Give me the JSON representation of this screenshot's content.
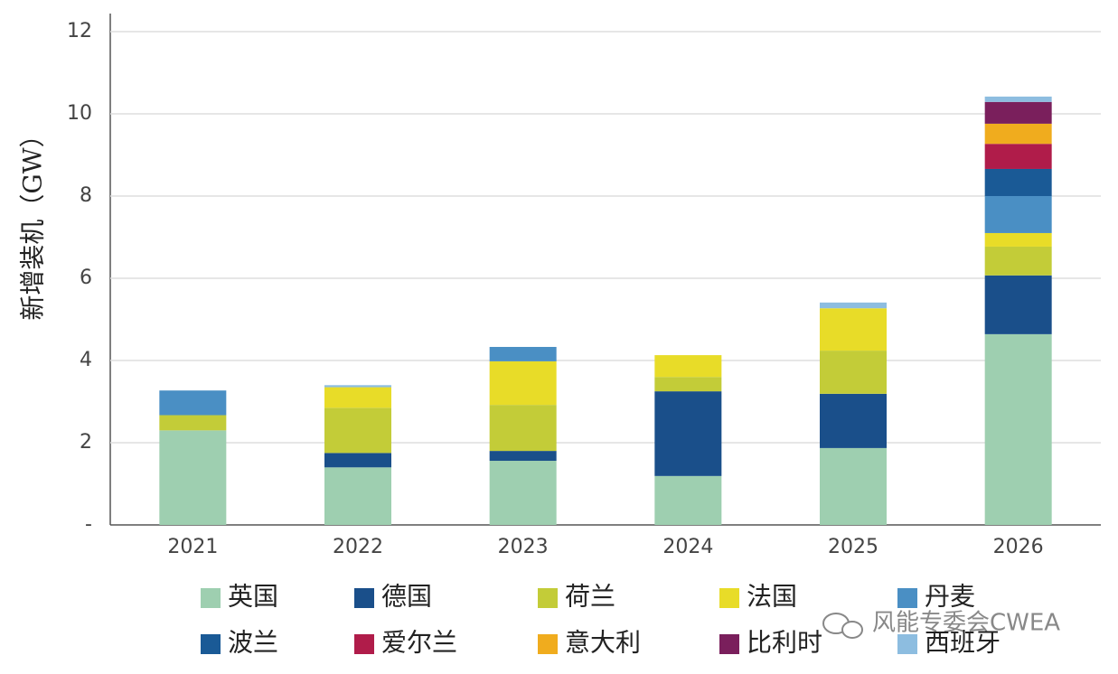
{
  "chart_data": {
    "type": "stacked_bar",
    "y_label": "新增装机（GW）",
    "watermark": "风能专委会CWEA",
    "categories": [
      "2021",
      "2022",
      "2023",
      "2024",
      "2025",
      "2026"
    ],
    "series": [
      {
        "name": "英国",
        "color": "#9ecfb0",
        "values": [
          2.3,
          1.4,
          1.56,
          1.19,
          1.87,
          4.64
        ]
      },
      {
        "name": "德国",
        "color": "#1a4f8a",
        "values": [
          0,
          0.35,
          0.24,
          2.06,
          1.32,
          1.43
        ]
      },
      {
        "name": "荷兰",
        "color": "#c3cc38",
        "values": [
          0.37,
          1.1,
          1.12,
          0.35,
          1.05,
          0.7
        ]
      },
      {
        "name": "法国",
        "color": "#e8dc28",
        "values": [
          0,
          0.5,
          1.06,
          0.53,
          1.03,
          0.33
        ]
      },
      {
        "name": "丹麦",
        "color": "#4a8fc4",
        "values": [
          0.6,
          0,
          0.35,
          0,
          0,
          0.9
        ]
      },
      {
        "name": "波兰",
        "color": "#1a5a96",
        "values": [
          0,
          0,
          0,
          0,
          0,
          0.66
        ]
      },
      {
        "name": "爱尔兰",
        "color": "#b01c4a",
        "values": [
          0,
          0,
          0,
          0,
          0,
          0.61
        ]
      },
      {
        "name": "意大利",
        "color": "#f0ac1e",
        "values": [
          0,
          0,
          0,
          0,
          0,
          0.49
        ]
      },
      {
        "name": "比利时",
        "color": "#7a1f5c",
        "values": [
          0,
          0,
          0,
          0,
          0,
          0.53
        ]
      },
      {
        "name": "西班牙",
        "color": "#8dbde0",
        "values": [
          0,
          0.05,
          0,
          0,
          0.14,
          0.13
        ]
      }
    ],
    "ylim": [
      0,
      12
    ],
    "yticks": [
      {
        "value": 0,
        "label": "-"
      },
      2,
      4,
      6,
      8,
      10,
      12
    ],
    "grid": true
  }
}
